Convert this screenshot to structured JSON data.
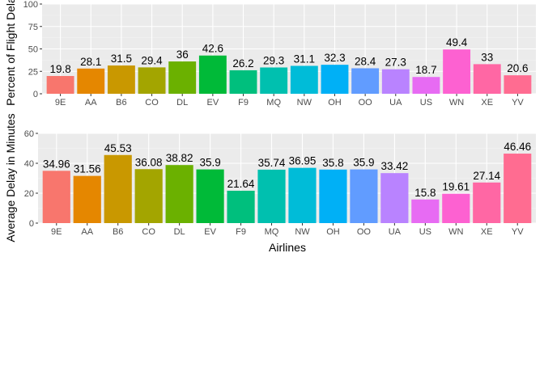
{
  "chart_data": [
    {
      "type": "bar",
      "categories": [
        "9E",
        "AA",
        "B6",
        "CO",
        "DL",
        "EV",
        "F9",
        "MQ",
        "NW",
        "OH",
        "OO",
        "UA",
        "US",
        "WN",
        "XE",
        "YV"
      ],
      "values": [
        19.8,
        28.1,
        31.5,
        29.4,
        36,
        42.6,
        26.2,
        29.3,
        31.1,
        32.3,
        28.4,
        27.3,
        18.7,
        49.4,
        33,
        20.6
      ],
      "value_labels": [
        "19.8",
        "28.1",
        "31.5",
        "29.4",
        "36",
        "42.6",
        "26.2",
        "29.3",
        "31.1",
        "32.3",
        "28.4",
        "27.3",
        "18.7",
        "49.4",
        "33",
        "20.6"
      ],
      "ylabel": "Percent of Flight Delay",
      "xlabel": "",
      "ylim": [
        0,
        100
      ],
      "yticks": [
        0,
        25,
        50,
        75,
        100
      ],
      "grid": true,
      "legend": "none"
    },
    {
      "type": "bar",
      "categories": [
        "9E",
        "AA",
        "B6",
        "CO",
        "DL",
        "EV",
        "F9",
        "MQ",
        "NW",
        "OH",
        "OO",
        "UA",
        "US",
        "WN",
        "XE",
        "YV"
      ],
      "values": [
        34.96,
        31.56,
        45.53,
        36.08,
        38.82,
        35.9,
        21.64,
        35.74,
        36.95,
        35.8,
        35.9,
        33.42,
        15.8,
        19.61,
        27.14,
        46.46
      ],
      "value_labels": [
        "34.96",
        "31.56",
        "45.53",
        "36.08",
        "38.82",
        "35.9",
        "21.64",
        "35.74",
        "36.95",
        "35.8",
        "35.9",
        "33.42",
        "15.8",
        "19.61",
        "27.14",
        "46.46"
      ],
      "ylabel": "Average Delay in Minutes",
      "xlabel": "Airlines",
      "ylim": [
        0,
        60
      ],
      "yticks": [
        0,
        20,
        40,
        60
      ],
      "grid": true,
      "legend": "none"
    }
  ],
  "colors": [
    "#F8766D",
    "#E58700",
    "#C99800",
    "#A3A500",
    "#6BB100",
    "#00BA38",
    "#00BF7D",
    "#00C0AF",
    "#00BCD8",
    "#00B0F6",
    "#619CFF",
    "#B983FF",
    "#E76BF3",
    "#FD61D1",
    "#FF67A4",
    "#FF6C91"
  ],
  "panel_background": "#EBEBEB",
  "grid_major_color": "#FFFFFF"
}
